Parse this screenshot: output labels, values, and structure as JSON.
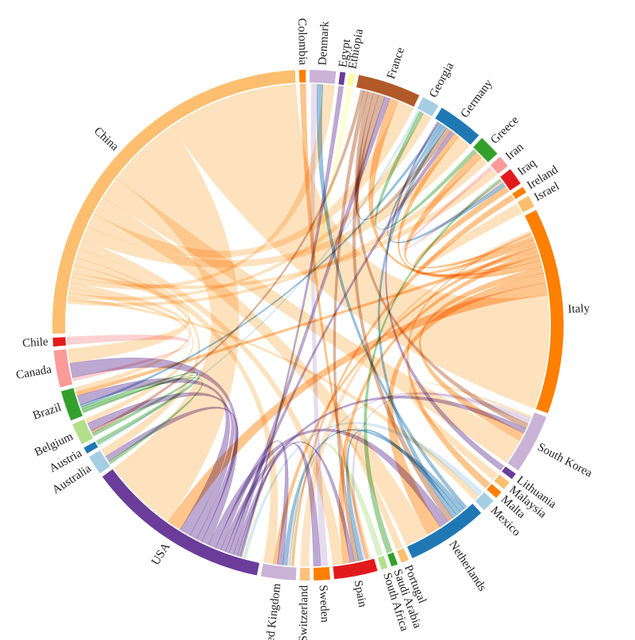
{
  "chart_data": {
    "type": "chord",
    "title": "",
    "countries": [
      {
        "name": "China",
        "color": "#fdbf6f",
        "weight": 36
      },
      {
        "name": "Chile",
        "color": "#e31a1c",
        "weight": 0.8
      },
      {
        "name": "Canada",
        "color": "#fb9a99",
        "weight": 3.4
      },
      {
        "name": "Brazil",
        "color": "#33a02c",
        "weight": 2.8
      },
      {
        "name": "Belgium",
        "color": "#b2df8a",
        "weight": 2.0
      },
      {
        "name": "Austria",
        "color": "#1f78b4",
        "weight": 0.6
      },
      {
        "name": "Australia",
        "color": "#a6cee3",
        "weight": 1.8
      },
      {
        "name": "USA",
        "color": "#6a3d9a",
        "weight": 17
      },
      {
        "name": "United Kingdom",
        "color": "#cab2d6",
        "weight": 3.2
      },
      {
        "name": "Switzerland",
        "color": "#ffc080",
        "weight": 0.9
      },
      {
        "name": "Sweden",
        "color": "#ff7f00",
        "weight": 1.5
      },
      {
        "name": "Spain",
        "color": "#e31a1c",
        "weight": 4.0
      },
      {
        "name": "South Africa",
        "color": "#b2df8a",
        "weight": 0.6
      },
      {
        "name": "Saudi Arabia",
        "color": "#33a02c",
        "weight": 0.6
      },
      {
        "name": "Portugal",
        "color": "#fdbf6f",
        "weight": 0.7
      },
      {
        "name": "Netherlands",
        "color": "#1f78b4",
        "weight": 7.5
      },
      {
        "name": "Mexico",
        "color": "#a6cee3",
        "weight": 1.2
      },
      {
        "name": "Malta",
        "color": "#ff7f00",
        "weight": 0.7
      },
      {
        "name": "Malaysia",
        "color": "#fdbf6f",
        "weight": 0.8
      },
      {
        "name": "Lithuania",
        "color": "#6a3d9a",
        "weight": 0.6
      },
      {
        "name": "South Korea",
        "color": "#cab2d6",
        "weight": 5.5
      },
      {
        "name": "Italy",
        "color": "#ff7f00",
        "weight": 19
      },
      {
        "name": "Israel",
        "color": "#fdbf6f",
        "weight": 1.1
      },
      {
        "name": "Ireland",
        "color": "#ff7f00",
        "weight": 0.6
      },
      {
        "name": "Iraq",
        "color": "#e31a1c",
        "weight": 1.6
      },
      {
        "name": "Iran",
        "color": "#fb9a99",
        "weight": 1.1
      },
      {
        "name": "Greece",
        "color": "#33a02c",
        "weight": 2.0
      },
      {
        "name": "Germany",
        "color": "#1f78b4",
        "weight": 4.2
      },
      {
        "name": "Georgia",
        "color": "#a6cee3",
        "weight": 1.6
      },
      {
        "name": "France",
        "color": "#b15928",
        "weight": 5.8
      },
      {
        "name": "Ethiopia",
        "color": "#ffff99",
        "weight": 0.5
      },
      {
        "name": "Egypt",
        "color": "#6a3d9a",
        "weight": 0.5
      },
      {
        "name": "Denmark",
        "color": "#cab2d6",
        "weight": 2.4
      },
      {
        "name": "Colombia",
        "color": "#ff7f00",
        "weight": 0.6
      }
    ],
    "links": [
      {
        "source": "China",
        "target": "Italy",
        "value": 14
      },
      {
        "source": "China",
        "target": "USA",
        "value": 8
      },
      {
        "source": "China",
        "target": "South Korea",
        "value": 2.5
      },
      {
        "source": "China",
        "target": "Netherlands",
        "value": 2
      },
      {
        "source": "China",
        "target": "France",
        "value": 1.5
      },
      {
        "source": "China",
        "target": "Germany",
        "value": 1.5
      },
      {
        "source": "China",
        "target": "Spain",
        "value": 1
      },
      {
        "source": "China",
        "target": "United Kingdom",
        "value": 1
      },
      {
        "source": "China",
        "target": "Australia",
        "value": 0.8
      },
      {
        "source": "China",
        "target": "Canada",
        "value": 0.8
      },
      {
        "source": "China",
        "target": "Iran",
        "value": 0.5
      },
      {
        "source": "China",
        "target": "Denmark",
        "value": 0.6
      },
      {
        "source": "China",
        "target": "Brazil",
        "value": 0.6
      },
      {
        "source": "China",
        "target": "Belgium",
        "value": 0.5
      },
      {
        "source": "China",
        "target": "Georgia",
        "value": 0.4
      },
      {
        "source": "China",
        "target": "Mexico",
        "value": 0.3
      },
      {
        "source": "China",
        "target": "Greece",
        "value": 0.4
      },
      {
        "source": "Italy",
        "target": "USA",
        "value": 1.5
      },
      {
        "source": "Italy",
        "target": "Netherlands",
        "value": 1.2
      },
      {
        "source": "Italy",
        "target": "South Korea",
        "value": 0.8
      },
      {
        "source": "Italy",
        "target": "France",
        "value": 0.8
      },
      {
        "source": "Italy",
        "target": "Germany",
        "value": 0.6
      },
      {
        "source": "Italy",
        "target": "Spain",
        "value": 0.6
      },
      {
        "source": "Italy",
        "target": "Brazil",
        "value": 0.5
      },
      {
        "source": "Italy",
        "target": "United Kingdom",
        "value": 0.4
      },
      {
        "source": "Italy",
        "target": "Iraq",
        "value": 0.5
      },
      {
        "source": "Italy",
        "target": "Greece",
        "value": 0.4
      },
      {
        "source": "USA",
        "target": "Brazil",
        "value": 1.2
      },
      {
        "source": "USA",
        "target": "Belgium",
        "value": 0.8
      },
      {
        "source": "USA",
        "target": "Australia",
        "value": 0.6
      },
      {
        "source": "USA",
        "target": "Canada",
        "value": 0.8
      },
      {
        "source": "USA",
        "target": "Netherlands",
        "value": 0.8
      },
      {
        "source": "USA",
        "target": "United Kingdom",
        "value": 0.6
      },
      {
        "source": "USA",
        "target": "South Korea",
        "value": 0.5
      },
      {
        "source": "USA",
        "target": "Germany",
        "value": 0.4
      },
      {
        "source": "USA",
        "target": "France",
        "value": 0.5
      },
      {
        "source": "USA",
        "target": "Spain",
        "value": 0.4
      },
      {
        "source": "USA",
        "target": "Sweden",
        "value": 0.3
      },
      {
        "source": "France",
        "target": "Germany",
        "value": 0.6
      },
      {
        "source": "France",
        "target": "Netherlands",
        "value": 0.5
      },
      {
        "source": "France",
        "target": "South Korea",
        "value": 0.5
      },
      {
        "source": "France",
        "target": "Spain",
        "value": 0.4
      },
      {
        "source": "France",
        "target": "Belgium",
        "value": 0.3
      },
      {
        "source": "Germany",
        "target": "Netherlands",
        "value": 0.4
      },
      {
        "source": "Germany",
        "target": "Iraq",
        "value": 0.3
      },
      {
        "source": "Germany",
        "target": "Brazil",
        "value": 0.3
      },
      {
        "source": "Netherlands",
        "target": "Spain",
        "value": 0.4
      },
      {
        "source": "Netherlands",
        "target": "United Kingdom",
        "value": 0.4
      },
      {
        "source": "Netherlands",
        "target": "Denmark",
        "value": 0.3
      },
      {
        "source": "South Korea",
        "target": "Spain",
        "value": 0.3
      },
      {
        "source": "South Korea",
        "target": "United Kingdom",
        "value": 0.3
      },
      {
        "source": "Canada",
        "target": "Chile",
        "value": 0.2
      },
      {
        "source": "Brazil",
        "target": "Belgium",
        "value": 0.3
      },
      {
        "source": "Brazil",
        "target": "Australia",
        "value": 0.3
      },
      {
        "source": "Brazil",
        "target": "Austria",
        "value": 0.2
      },
      {
        "source": "Denmark",
        "target": "Sweden",
        "value": 0.3
      },
      {
        "source": "Greece",
        "target": "Georgia",
        "value": 0.2
      },
      {
        "source": "Iran",
        "target": "Iraq",
        "value": 0.2
      },
      {
        "source": "Israel",
        "target": "Italy",
        "value": 0.3
      },
      {
        "source": "Colombia",
        "target": "Spain",
        "value": 0.2
      },
      {
        "source": "Egypt",
        "target": "USA",
        "value": 0.2
      },
      {
        "source": "Ethiopia",
        "target": "USA",
        "value": 0.15
      },
      {
        "source": "Malaysia",
        "target": "South Korea",
        "value": 0.2
      },
      {
        "source": "Malta",
        "target": "Italy",
        "value": 0.2
      },
      {
        "source": "Lithuania",
        "target": "Germany",
        "value": 0.2
      },
      {
        "source": "Mexico",
        "target": "USA",
        "value": 0.3
      },
      {
        "source": "Portugal",
        "target": "Spain",
        "value": 0.2
      },
      {
        "source": "Saudi Arabia",
        "target": "Iraq",
        "value": 0.2
      },
      {
        "source": "South Africa",
        "target": "United Kingdom",
        "value": 0.2
      },
      {
        "source": "Switzerland",
        "target": "Italy",
        "value": 0.3
      },
      {
        "source": "Ireland",
        "target": "United Kingdom",
        "value": 0.2
      },
      {
        "source": "Georgia",
        "target": "Austria",
        "value": 0.1
      }
    ]
  }
}
